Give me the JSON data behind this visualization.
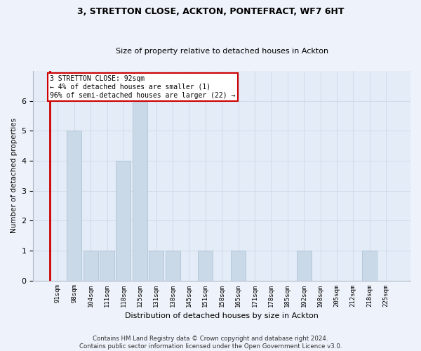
{
  "title_line1": "3, STRETTON CLOSE, ACKTON, PONTEFRACT, WF7 6HT",
  "title_line2": "Size of property relative to detached houses in Ackton",
  "xlabel": "Distribution of detached houses by size in Ackton",
  "ylabel": "Number of detached properties",
  "categories": [
    "91sqm",
    "98sqm",
    "104sqm",
    "111sqm",
    "118sqm",
    "125sqm",
    "131sqm",
    "138sqm",
    "145sqm",
    "151sqm",
    "158sqm",
    "165sqm",
    "171sqm",
    "178sqm",
    "185sqm",
    "192sqm",
    "198sqm",
    "205sqm",
    "212sqm",
    "218sqm",
    "225sqm"
  ],
  "values": [
    0,
    5,
    1,
    1,
    4,
    6,
    1,
    1,
    0,
    1,
    0,
    1,
    0,
    0,
    0,
    1,
    0,
    0,
    0,
    1,
    0
  ],
  "bar_color": "#c9d9e8",
  "bar_edge_color": "#a8bfcf",
  "ylim_max": 7,
  "yticks": [
    0,
    1,
    2,
    3,
    4,
    5,
    6,
    7
  ],
  "annotation_text_line1": "3 STRETTON CLOSE: 92sqm",
  "annotation_text_line2": "← 4% of detached houses are smaller (1)",
  "annotation_text_line3": "96% of semi-detached houses are larger (22) →",
  "footer_line1": "Contains HM Land Registry data © Crown copyright and database right 2024.",
  "footer_line2": "Contains public sector information licensed under the Open Government Licence v3.0.",
  "grid_color": "#d0dae8",
  "fig_bg_color": "#eef2fa",
  "ax_bg_color": "#e4ecf7",
  "red_line_color": "#cc0000",
  "annotation_box_facecolor": "#ffffff",
  "annotation_box_edgecolor": "#cc0000"
}
